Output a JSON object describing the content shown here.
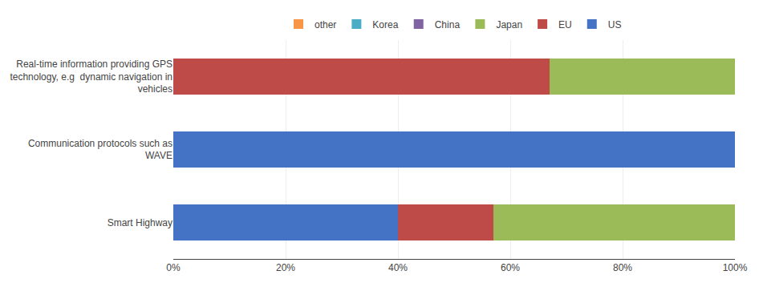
{
  "chart_data": {
    "type": "bar",
    "orientation": "horizontal",
    "stacked": true,
    "categories": [
      "Real-time information providing GPS\ntechnology, e.g  dynamic navigation in\nvehicles",
      "Communication protocols such as\nWAVE",
      "Smart Highway"
    ],
    "series": [
      {
        "name": "US",
        "color": "#4472C4",
        "values": [
          0,
          100,
          40
        ]
      },
      {
        "name": "EU",
        "color": "#BE4B48",
        "values": [
          67,
          0,
          17
        ]
      },
      {
        "name": "Japan",
        "color": "#9BBB59",
        "values": [
          33,
          0,
          43
        ]
      },
      {
        "name": "China",
        "color": "#8064A2",
        "values": [
          0,
          0,
          0
        ]
      },
      {
        "name": "Korea",
        "color": "#4BACC6",
        "values": [
          0,
          0,
          0
        ]
      },
      {
        "name": "other",
        "color": "#F79646",
        "values": [
          0,
          0,
          0
        ]
      }
    ],
    "xlim": [
      0,
      100
    ],
    "xticks": [
      {
        "value": 0,
        "label": "0%"
      },
      {
        "value": 20,
        "label": "20%"
      },
      {
        "value": 40,
        "label": "40%"
      },
      {
        "value": 60,
        "label": "60%"
      },
      {
        "value": 80,
        "label": "80%"
      },
      {
        "value": 100,
        "label": "100%"
      }
    ],
    "grid": true,
    "legend": "top"
  }
}
